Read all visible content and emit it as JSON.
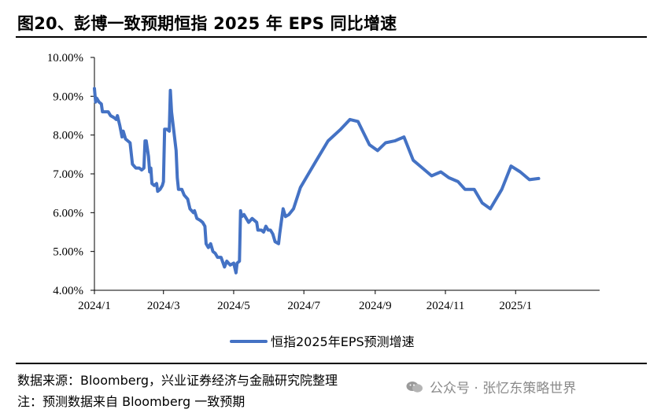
{
  "title": "图20、彭博一致预期恒指 2025 年 EPS 同比增速",
  "footer": {
    "source": "数据来源：Bloomberg，兴业证券经济与金融研究院整理",
    "note": "注：预测数据来自 Bloomberg 一致预期"
  },
  "watermark": {
    "text": "公众号 · 张忆东策略世界",
    "icon": "wechat-icon"
  },
  "colors": {
    "series": "#4472C4",
    "axis": "#000000"
  },
  "chart_data": {
    "type": "line",
    "title": "",
    "xlabel": "",
    "ylabel": "",
    "ylim": [
      4.0,
      10.0
    ],
    "xlim": [
      "2024-01-01",
      "2025-03-15"
    ],
    "y_ticks": [
      "4.00%",
      "5.00%",
      "6.00%",
      "7.00%",
      "8.00%",
      "9.00%",
      "10.00%"
    ],
    "x_ticks": [
      {
        "date": "2024-01-01",
        "label": "2024/1"
      },
      {
        "date": "2024-03-01",
        "label": "2024/3"
      },
      {
        "date": "2024-05-01",
        "label": "2024/5"
      },
      {
        "date": "2024-07-01",
        "label": "2024/7"
      },
      {
        "date": "2024-09-01",
        "label": "2024/9"
      },
      {
        "date": "2024-11-01",
        "label": "2024/11"
      },
      {
        "date": "2025-01-01",
        "label": "2025/1"
      }
    ],
    "grid": false,
    "legend_position": "bottom",
    "series": [
      {
        "name": "恒指2025年EPS预测增速",
        "points": [
          [
            "2024-01-01",
            9.2
          ],
          [
            "2024-01-02",
            8.85
          ],
          [
            "2024-01-03",
            8.95
          ],
          [
            "2024-01-05",
            8.85
          ],
          [
            "2024-01-07",
            8.8
          ],
          [
            "2024-01-08",
            8.6
          ],
          [
            "2024-01-10",
            8.6
          ],
          [
            "2024-01-13",
            8.6
          ],
          [
            "2024-01-15",
            8.5
          ],
          [
            "2024-01-18",
            8.45
          ],
          [
            "2024-01-20",
            8.4
          ],
          [
            "2024-01-21",
            8.5
          ],
          [
            "2024-01-23",
            8.25
          ],
          [
            "2024-01-25",
            7.95
          ],
          [
            "2024-01-26",
            8.1
          ],
          [
            "2024-01-28",
            7.9
          ],
          [
            "2024-02-01",
            7.8
          ],
          [
            "2024-02-03",
            7.25
          ],
          [
            "2024-02-06",
            7.15
          ],
          [
            "2024-02-09",
            7.15
          ],
          [
            "2024-02-11",
            7.1
          ],
          [
            "2024-02-13",
            7.15
          ],
          [
            "2024-02-14",
            7.85
          ],
          [
            "2024-02-15",
            7.85
          ],
          [
            "2024-02-17",
            7.45
          ],
          [
            "2024-02-18",
            7.05
          ],
          [
            "2024-02-19",
            7.15
          ],
          [
            "2024-02-20",
            6.75
          ],
          [
            "2024-02-22",
            6.7
          ],
          [
            "2024-02-24",
            6.75
          ],
          [
            "2024-02-25",
            6.55
          ],
          [
            "2024-02-27",
            6.6
          ],
          [
            "2024-02-29",
            6.7
          ],
          [
            "2024-03-01",
            6.8
          ],
          [
            "2024-03-02",
            8.15
          ],
          [
            "2024-03-04",
            8.15
          ],
          [
            "2024-03-06",
            8.1
          ],
          [
            "2024-03-07",
            9.15
          ],
          [
            "2024-03-08",
            8.6
          ],
          [
            "2024-03-10",
            8.1
          ],
          [
            "2024-03-12",
            7.6
          ],
          [
            "2024-03-13",
            6.9
          ],
          [
            "2024-03-14",
            6.6
          ],
          [
            "2024-03-17",
            6.6
          ],
          [
            "2024-03-19",
            6.45
          ],
          [
            "2024-03-22",
            6.35
          ],
          [
            "2024-03-24",
            6.1
          ],
          [
            "2024-03-27",
            6.0
          ],
          [
            "2024-03-28",
            6.05
          ],
          [
            "2024-03-30",
            5.85
          ],
          [
            "2024-04-02",
            5.8
          ],
          [
            "2024-04-04",
            5.75
          ],
          [
            "2024-04-06",
            5.65
          ],
          [
            "2024-04-07",
            5.2
          ],
          [
            "2024-04-09",
            5.1
          ],
          [
            "2024-04-11",
            5.2
          ],
          [
            "2024-04-13",
            5.0
          ],
          [
            "2024-04-15",
            4.95
          ],
          [
            "2024-04-17",
            4.85
          ],
          [
            "2024-04-20",
            4.85
          ],
          [
            "2024-04-23",
            4.6
          ],
          [
            "2024-04-25",
            4.75
          ],
          [
            "2024-04-28",
            4.65
          ],
          [
            "2024-05-01",
            4.7
          ],
          [
            "2024-05-03",
            4.45
          ],
          [
            "2024-05-04",
            4.7
          ],
          [
            "2024-05-06",
            4.75
          ],
          [
            "2024-05-07",
            6.05
          ],
          [
            "2024-05-08",
            5.9
          ],
          [
            "2024-05-10",
            5.95
          ],
          [
            "2024-05-12",
            5.85
          ],
          [
            "2024-05-14",
            5.75
          ],
          [
            "2024-05-17",
            5.85
          ],
          [
            "2024-05-19",
            5.8
          ],
          [
            "2024-05-21",
            5.75
          ],
          [
            "2024-05-22",
            5.55
          ],
          [
            "2024-05-25",
            5.55
          ],
          [
            "2024-05-27",
            5.5
          ],
          [
            "2024-05-29",
            5.65
          ],
          [
            "2024-05-31",
            5.55
          ],
          [
            "2024-06-02",
            5.55
          ],
          [
            "2024-06-04",
            5.45
          ],
          [
            "2024-06-06",
            5.25
          ],
          [
            "2024-06-09",
            5.2
          ],
          [
            "2024-06-10",
            5.45
          ],
          [
            "2024-06-12",
            5.9
          ],
          [
            "2024-06-13",
            6.1
          ],
          [
            "2024-06-15",
            5.9
          ],
          [
            "2024-06-18",
            5.95
          ],
          [
            "2024-06-22",
            6.1
          ],
          [
            "2024-06-28",
            6.65
          ],
          [
            "2024-07-04",
            6.95
          ],
          [
            "2024-07-12",
            7.35
          ],
          [
            "2024-07-22",
            7.85
          ],
          [
            "2024-08-02",
            8.15
          ],
          [
            "2024-08-10",
            8.4
          ],
          [
            "2024-08-17",
            8.35
          ],
          [
            "2024-08-22",
            8.05
          ],
          [
            "2024-08-27",
            7.75
          ],
          [
            "2024-09-03",
            7.6
          ],
          [
            "2024-09-10",
            7.8
          ],
          [
            "2024-09-18",
            7.85
          ],
          [
            "2024-09-26",
            7.95
          ],
          [
            "2024-10-04",
            7.35
          ],
          [
            "2024-10-10",
            7.2
          ],
          [
            "2024-10-20",
            6.95
          ],
          [
            "2024-10-28",
            7.05
          ],
          [
            "2024-11-04",
            6.9
          ],
          [
            "2024-11-12",
            6.8
          ],
          [
            "2024-11-18",
            6.6
          ],
          [
            "2024-11-26",
            6.6
          ],
          [
            "2024-12-03",
            6.25
          ],
          [
            "2024-12-10",
            6.1
          ],
          [
            "2024-12-20",
            6.6
          ],
          [
            "2024-12-28",
            7.2
          ],
          [
            "2025-01-05",
            7.05
          ],
          [
            "2025-01-13",
            6.85
          ],
          [
            "2025-01-21",
            6.88
          ]
        ]
      }
    ]
  }
}
